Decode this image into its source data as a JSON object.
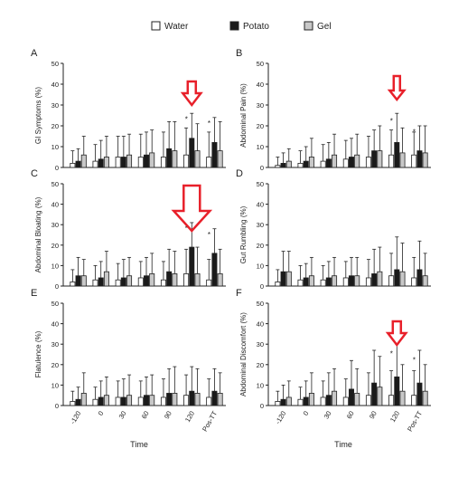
{
  "legend": {
    "items": [
      {
        "label": "Water",
        "color": "#ffffff"
      },
      {
        "label": "Potato",
        "color": "#1a1a1a"
      },
      {
        "label": "Gel",
        "color": "#c8c8c8"
      }
    ]
  },
  "x_axis": {
    "ticks": [
      "-120",
      "0",
      "30",
      "60",
      "90",
      "120",
      "Pos-TT"
    ],
    "label": "Time"
  },
  "arrow_color": "#e8202a",
  "chart_data": [
    {
      "type": "bar",
      "panel": "A",
      "ylabel": "GI Symptoms (%)",
      "ylim": [
        0,
        50
      ],
      "yticks": [
        0,
        10,
        20,
        30,
        40,
        50
      ],
      "categories": [
        "-120",
        "0",
        "30",
        "60",
        "90",
        "120",
        "Pos-TT"
      ],
      "series": [
        {
          "name": "Water",
          "values": [
            2,
            3,
            5,
            5,
            5,
            6,
            5
          ],
          "errors": [
            6,
            8,
            10,
            11,
            12,
            13,
            12
          ]
        },
        {
          "name": "Potato",
          "values": [
            3,
            4,
            5,
            6,
            9,
            14,
            12
          ],
          "errors": [
            6,
            9,
            10,
            11,
            13,
            12,
            12
          ]
        },
        {
          "name": "Gel",
          "values": [
            6,
            5,
            6,
            7,
            8,
            8,
            8
          ],
          "errors": [
            9,
            10,
            10,
            11,
            14,
            13,
            14
          ]
        }
      ],
      "significance": [
        "",
        "",
        "",
        "",
        "",
        "*",
        "*"
      ],
      "arrow": {
        "category": "120",
        "size": "small"
      }
    },
    {
      "type": "bar",
      "panel": "B",
      "ylabel": "Abdominal Pain (%)",
      "ylim": [
        0,
        50
      ],
      "yticks": [
        0,
        10,
        20,
        30,
        40,
        50
      ],
      "categories": [
        "-120",
        "0",
        "30",
        "60",
        "90",
        "120",
        "Pos-TT"
      ],
      "series": [
        {
          "name": "Water",
          "values": [
            1,
            2,
            3,
            4,
            5,
            6,
            6
          ],
          "errors": [
            4,
            6,
            8,
            9,
            10,
            12,
            11
          ]
        },
        {
          "name": "Potato",
          "values": [
            2,
            3,
            4,
            5,
            8,
            12,
            8
          ],
          "errors": [
            5,
            7,
            8,
            9,
            10,
            14,
            12
          ]
        },
        {
          "name": "Gel",
          "values": [
            3,
            5,
            6,
            6,
            8,
            7,
            7
          ],
          "errors": [
            6,
            9,
            10,
            10,
            12,
            12,
            13
          ]
        }
      ],
      "significance": [
        "",
        "",
        "",
        "",
        "",
        "*",
        "*"
      ],
      "arrow": {
        "category": "120",
        "size": "small"
      }
    },
    {
      "type": "bar",
      "panel": "C",
      "ylabel": "Abdominal Bloating (%)",
      "ylim": [
        0,
        50
      ],
      "yticks": [
        0,
        10,
        20,
        30,
        40,
        50
      ],
      "categories": [
        "-120",
        "0",
        "30",
        "60",
        "90",
        "120",
        "Pos-TT"
      ],
      "series": [
        {
          "name": "Water",
          "values": [
            2,
            3,
            3,
            4,
            3,
            6,
            3
          ],
          "errors": [
            6,
            7,
            8,
            8,
            9,
            12,
            10
          ]
        },
        {
          "name": "Potato",
          "values": [
            5,
            4,
            4,
            5,
            7,
            19,
            16
          ],
          "errors": [
            9,
            8,
            9,
            9,
            11,
            12,
            12
          ]
        },
        {
          "name": "Gel",
          "values": [
            5,
            7,
            5,
            6,
            6,
            6,
            6
          ],
          "errors": [
            8,
            10,
            9,
            10,
            11,
            13,
            12
          ]
        }
      ],
      "significance": [
        "",
        "",
        "",
        "",
        "",
        "*",
        "*"
      ],
      "arrow": {
        "category": "120",
        "size": "large"
      }
    },
    {
      "type": "bar",
      "panel": "D",
      "ylabel": "Gut Rumbling (%)",
      "ylim": [
        0,
        50
      ],
      "yticks": [
        0,
        10,
        20,
        30,
        40,
        50
      ],
      "categories": [
        "-120",
        "0",
        "30",
        "60",
        "90",
        "120",
        "Pos-TT"
      ],
      "series": [
        {
          "name": "Water",
          "values": [
            2,
            3,
            3,
            4,
            4,
            5,
            4
          ],
          "errors": [
            6,
            7,
            7,
            8,
            9,
            11,
            10
          ]
        },
        {
          "name": "Potato",
          "values": [
            7,
            4,
            4,
            5,
            6,
            8,
            8
          ],
          "errors": [
            10,
            7,
            8,
            9,
            12,
            16,
            14
          ]
        },
        {
          "name": "Gel",
          "values": [
            7,
            5,
            5,
            5,
            7,
            7,
            5
          ],
          "errors": [
            10,
            9,
            9,
            9,
            12,
            14,
            11
          ]
        }
      ],
      "significance": [
        "",
        "",
        "",
        "",
        "",
        "",
        ""
      ]
    },
    {
      "type": "bar",
      "panel": "E",
      "ylabel": "Flatulence (%)",
      "ylim": [
        0,
        50
      ],
      "yticks": [
        0,
        10,
        20,
        30,
        40,
        50
      ],
      "categories": [
        "-120",
        "0",
        "30",
        "60",
        "90",
        "120",
        "Pos-TT"
      ],
      "series": [
        {
          "name": "Water",
          "values": [
            2,
            3,
            4,
            4,
            4,
            5,
            4
          ],
          "errors": [
            5,
            6,
            8,
            8,
            9,
            10,
            9
          ]
        },
        {
          "name": "Potato",
          "values": [
            3,
            4,
            4,
            5,
            6,
            7,
            7
          ],
          "errors": [
            6,
            8,
            9,
            9,
            12,
            12,
            11
          ]
        },
        {
          "name": "Gel",
          "values": [
            6,
            5,
            5,
            5,
            6,
            6,
            6
          ],
          "errors": [
            10,
            9,
            10,
            10,
            13,
            12,
            10
          ]
        }
      ],
      "significance": [
        "",
        "",
        "",
        "",
        "",
        "",
        ""
      ]
    },
    {
      "type": "bar",
      "panel": "F",
      "ylabel": "Abdominal Discomfort (%)",
      "ylim": [
        0,
        50
      ],
      "yticks": [
        0,
        10,
        20,
        30,
        40,
        50
      ],
      "categories": [
        "-120",
        "0",
        "30",
        "60",
        "90",
        "120",
        "Pos-TT"
      ],
      "series": [
        {
          "name": "Water",
          "values": [
            2,
            3,
            4,
            4,
            5,
            5,
            5
          ],
          "errors": [
            5,
            6,
            8,
            9,
            11,
            12,
            12
          ]
        },
        {
          "name": "Potato",
          "values": [
            3,
            4,
            5,
            8,
            11,
            14,
            11
          ],
          "errors": [
            7,
            8,
            11,
            14,
            16,
            16,
            16
          ]
        },
        {
          "name": "Gel",
          "values": [
            4,
            6,
            7,
            6,
            9,
            7,
            7
          ],
          "errors": [
            8,
            10,
            11,
            12,
            15,
            13,
            13
          ]
        }
      ],
      "significance": [
        "",
        "",
        "",
        "",
        "",
        "*",
        "*"
      ],
      "arrow": {
        "category": "120",
        "size": "small"
      }
    }
  ]
}
